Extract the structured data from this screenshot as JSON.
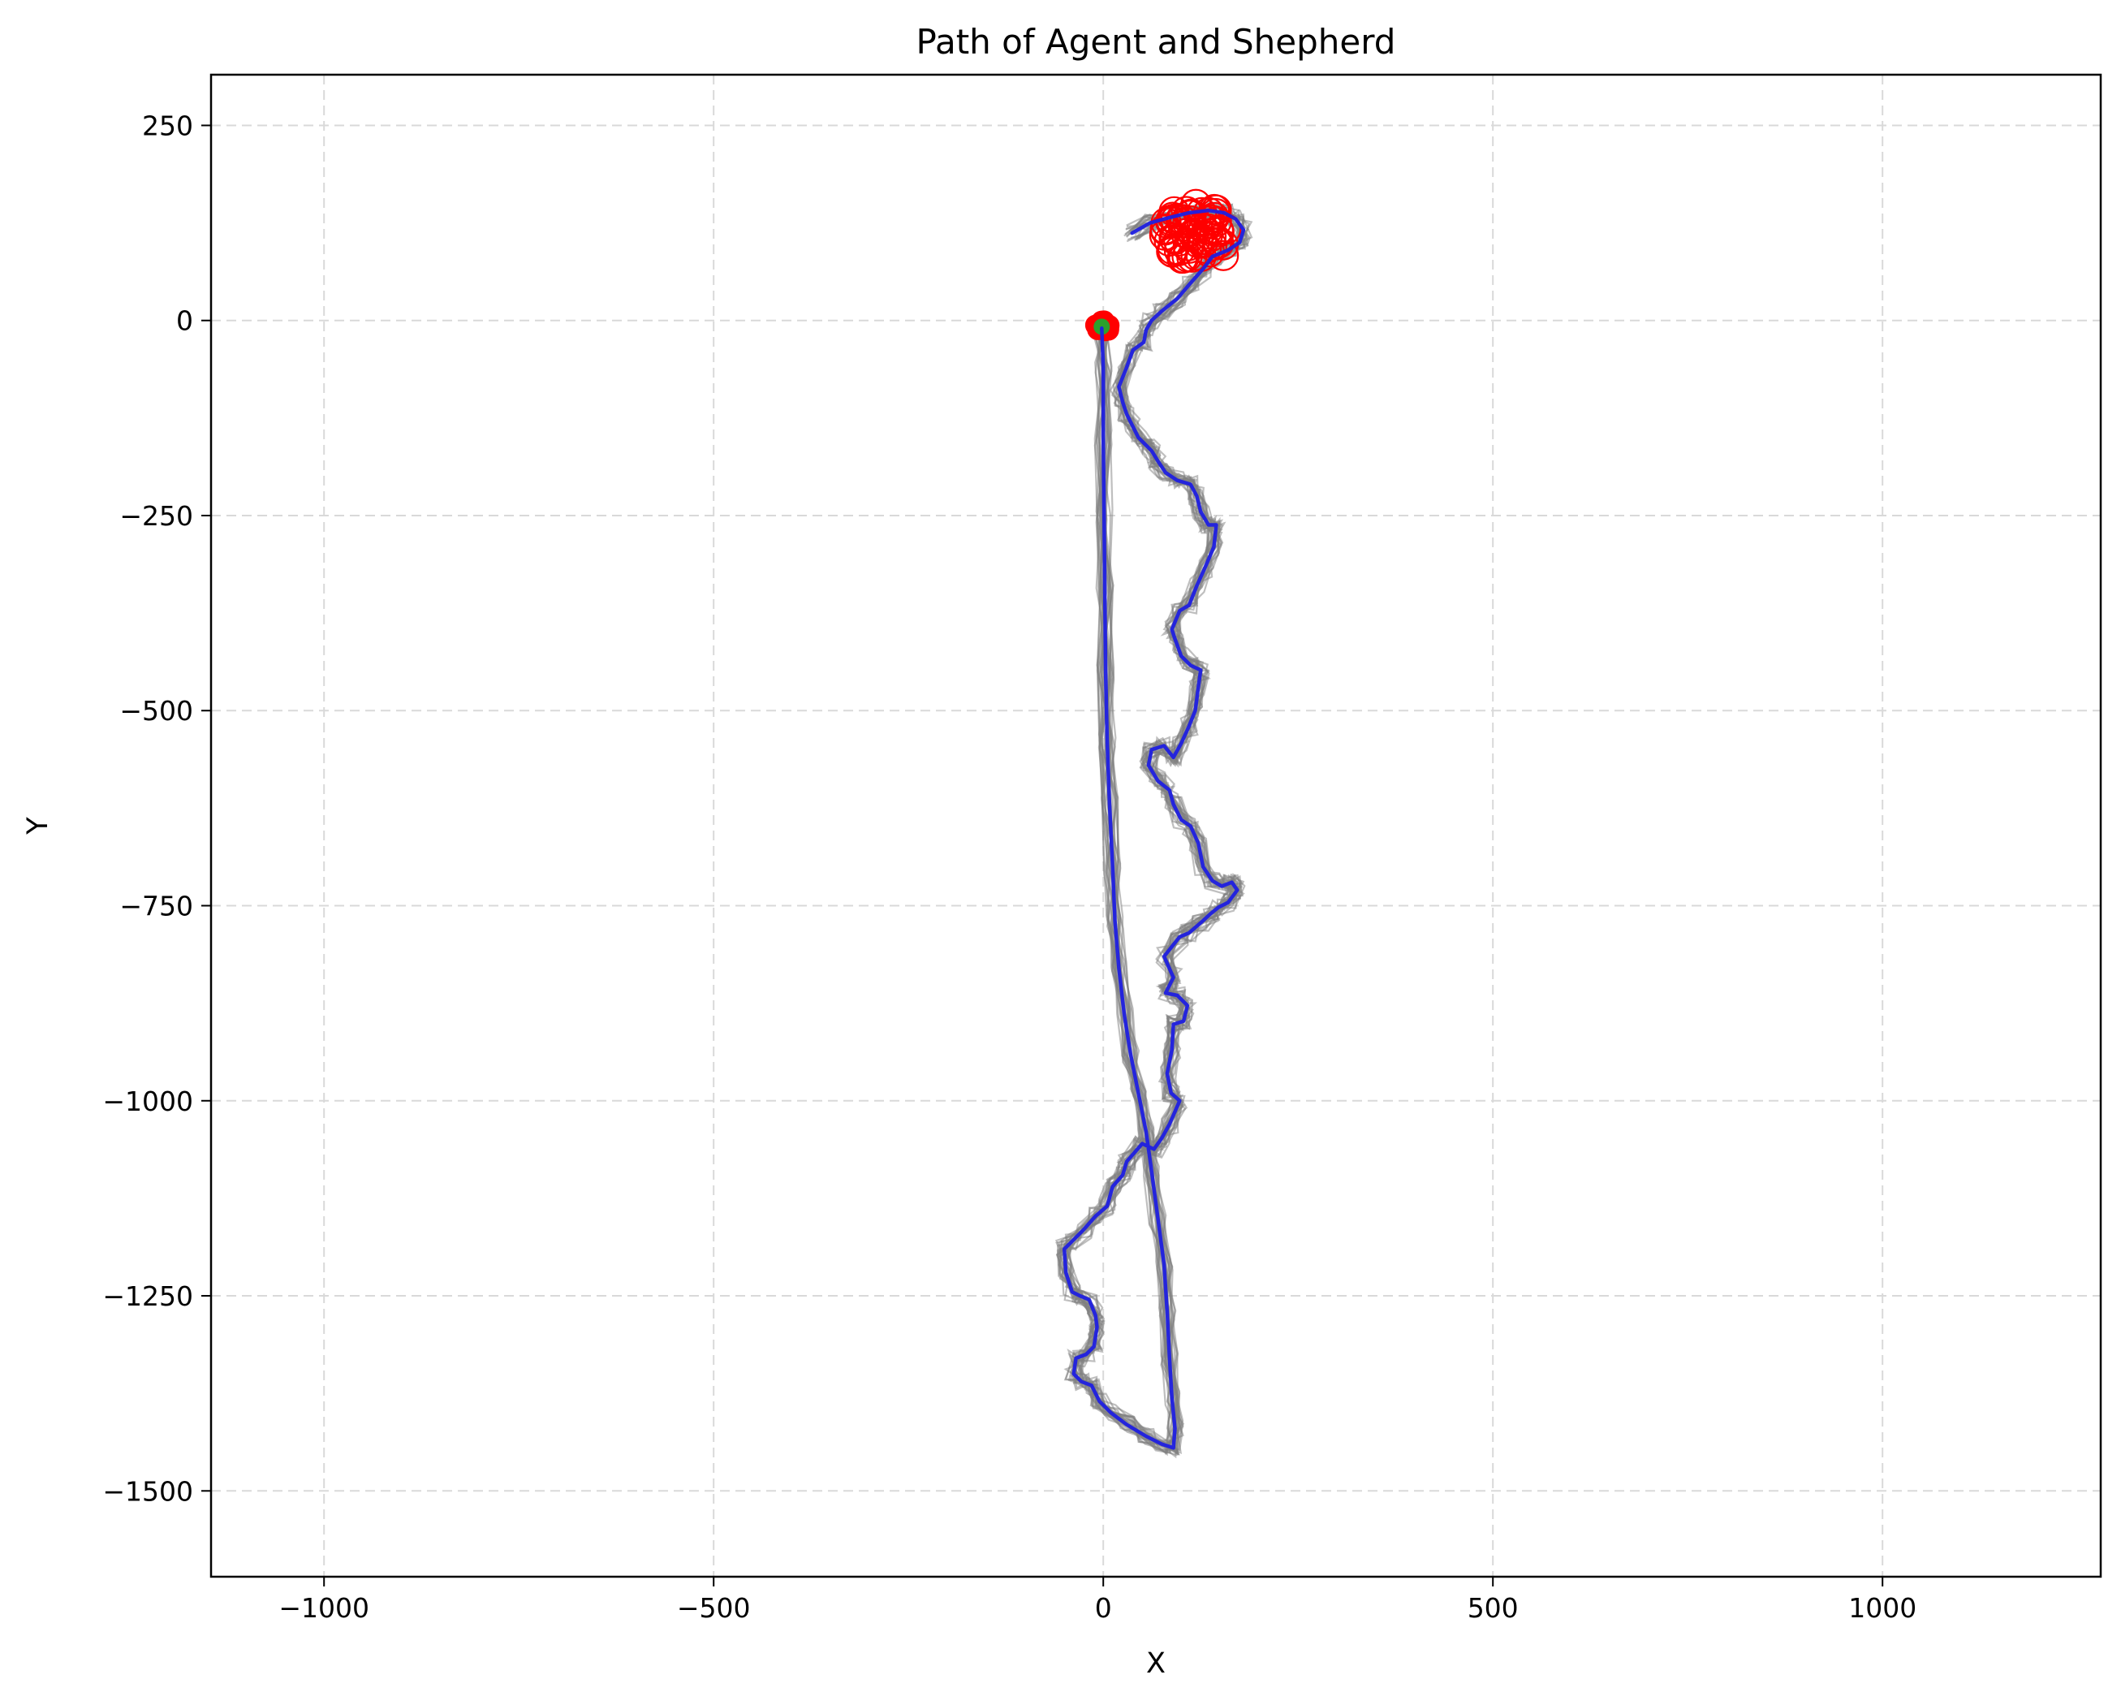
{
  "chart_data": {
    "type": "line",
    "title": "Path of Agent and Shepherd",
    "xlabel": "X",
    "ylabel": "Y",
    "xlim": [
      -1145,
      1280
    ],
    "ylim": [
      -1610,
      315
    ],
    "grid": true,
    "x_ticks": [
      -1000,
      -500,
      0,
      500,
      1000
    ],
    "x_tick_labels": [
      "−1000",
      "−500",
      "0",
      "500",
      "1000"
    ],
    "y_ticks": [
      250,
      0,
      -250,
      -500,
      -750,
      -1000,
      -1250,
      -1500
    ],
    "y_tick_labels": [
      "250",
      "0",
      "−250",
      "−500",
      "−750",
      "−1000",
      "−1250",
      "−1500"
    ],
    "colors": {
      "agent_path": "#1f1fe0",
      "shepherd_trails": "#808080",
      "markers": "#ff0000",
      "start_marker": "#2ca02c",
      "grid": "#d9d9d9"
    },
    "series": [
      {
        "color": "#1f1fe0",
        "points": [
          [
            37,
            112
          ],
          [
            60,
            125
          ],
          [
            85,
            132
          ],
          [
            110,
            138
          ],
          [
            135,
            141
          ],
          [
            155,
            138
          ],
          [
            170,
            130
          ],
          [
            180,
            116
          ],
          [
            175,
            100
          ],
          [
            160,
            90
          ],
          [
            140,
            82
          ],
          [
            128,
            66
          ],
          [
            112,
            48
          ],
          [
            95,
            28
          ],
          [
            75,
            12
          ],
          [
            62,
            0
          ],
          [
            55,
            -12
          ],
          [
            52,
            -28
          ],
          [
            38,
            -38
          ],
          [
            30,
            -60
          ],
          [
            20,
            -85
          ],
          [
            25,
            -105
          ],
          [
            30,
            -120
          ],
          [
            38,
            -136
          ],
          [
            45,
            -150
          ],
          [
            55,
            -160
          ],
          [
            62,
            -167
          ],
          [
            70,
            -180
          ],
          [
            80,
            -195
          ],
          [
            95,
            -205
          ],
          [
            112,
            -210
          ],
          [
            120,
            -225
          ],
          [
            125,
            -245
          ],
          [
            135,
            -262
          ],
          [
            145,
            -262
          ],
          [
            142,
            -290
          ],
          [
            130,
            -318
          ],
          [
            120,
            -340
          ],
          [
            110,
            -365
          ],
          [
            98,
            -372
          ],
          [
            88,
            -396
          ],
          [
            92,
            -408
          ],
          [
            100,
            -430
          ],
          [
            112,
            -442
          ],
          [
            125,
            -448
          ],
          [
            122,
            -470
          ],
          [
            118,
            -500
          ],
          [
            110,
            -520
          ],
          [
            100,
            -542
          ],
          [
            90,
            -560
          ],
          [
            78,
            -545
          ],
          [
            62,
            -550
          ],
          [
            58,
            -570
          ],
          [
            70,
            -590
          ],
          [
            85,
            -602
          ],
          [
            90,
            -620
          ],
          [
            100,
            -640
          ],
          [
            112,
            -648
          ],
          [
            122,
            -670
          ],
          [
            128,
            -700
          ],
          [
            140,
            -718
          ],
          [
            152,
            -725
          ],
          [
            165,
            -720
          ],
          [
            172,
            -730
          ],
          [
            160,
            -746
          ],
          [
            148,
            -752
          ],
          [
            138,
            -760
          ],
          [
            125,
            -772
          ],
          [
            110,
            -785
          ],
          [
            98,
            -790
          ],
          [
            78,
            -815
          ],
          [
            90,
            -842
          ],
          [
            80,
            -862
          ],
          [
            95,
            -865
          ],
          [
            108,
            -878
          ],
          [
            103,
            -898
          ],
          [
            90,
            -902
          ],
          [
            88,
            -935
          ],
          [
            82,
            -965
          ],
          [
            87,
            -990
          ],
          [
            98,
            -1000
          ],
          [
            85,
            -1030
          ],
          [
            75,
            -1048
          ],
          [
            65,
            -1062
          ],
          [
            50,
            -1055
          ],
          [
            30,
            -1078
          ],
          [
            25,
            -1095
          ],
          [
            12,
            -1110
          ],
          [
            5,
            -1135
          ],
          [
            -10,
            -1148
          ],
          [
            -25,
            -1165
          ],
          [
            -40,
            -1180
          ],
          [
            -50,
            -1190
          ],
          [
            -48,
            -1220
          ],
          [
            -40,
            -1245
          ],
          [
            -30,
            -1250
          ],
          [
            -18,
            -1255
          ],
          [
            -10,
            -1275
          ],
          [
            -8,
            -1290
          ],
          [
            -12,
            -1315
          ],
          [
            -22,
            -1325
          ],
          [
            -35,
            -1330
          ],
          [
            -38,
            -1350
          ],
          [
            -28,
            -1360
          ],
          [
            -15,
            -1365
          ],
          [
            -5,
            -1385
          ],
          [
            10,
            -1400
          ],
          [
            30,
            -1415
          ],
          [
            55,
            -1430
          ],
          [
            75,
            -1440
          ],
          [
            90,
            -1445
          ],
          [
            92,
            -1420
          ],
          [
            88,
            -1380
          ],
          [
            85,
            -1330
          ],
          [
            82,
            -1270
          ],
          [
            78,
            -1210
          ],
          [
            70,
            -1150
          ],
          [
            62,
            -1090
          ],
          [
            55,
            -1040
          ],
          [
            45,
            -990
          ],
          [
            35,
            -940
          ],
          [
            27,
            -890
          ],
          [
            20,
            -830
          ],
          [
            15,
            -770
          ],
          [
            12,
            -700
          ],
          [
            8,
            -620
          ],
          [
            5,
            -540
          ],
          [
            3,
            -450
          ],
          [
            2,
            -350
          ],
          [
            1,
            -250
          ],
          [
            0,
            -150
          ],
          [
            0,
            -60
          ],
          [
            -2,
            -10
          ]
        ]
      }
    ],
    "annotations": []
  }
}
